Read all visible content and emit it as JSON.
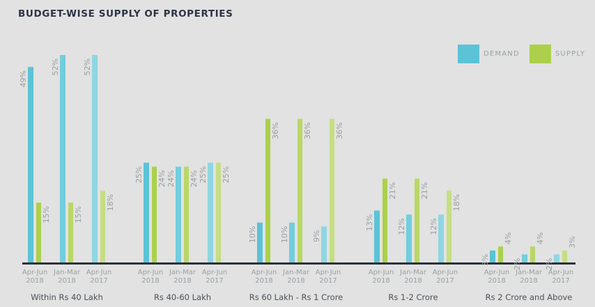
{
  "chart_data": {
    "type": "bar",
    "title": "BUDGET-WISE SUPPLY OF PROPERTIES",
    "legend": {
      "position": "top-right",
      "entries": [
        {
          "name": "DEMAND",
          "color": "#5bc3d6"
        },
        {
          "name": "SUPPLY",
          "color": "#acd04c"
        }
      ]
    },
    "periods": [
      {
        "line1": "Apr-Jun",
        "line2": "2018"
      },
      {
        "line1": "Jan-Mar",
        "line2": "2018"
      },
      {
        "line1": "Apr-Jun",
        "line2": "2017"
      }
    ],
    "period_colors": {
      "demand": [
        "#5bc3d6",
        "#72cddc",
        "#8fd6e2"
      ],
      "supply": [
        "#acd04c",
        "#b9d765",
        "#c5de82"
      ]
    },
    "categories": [
      "Within Rs 40 Lakh",
      "Rs 40-60 Lakh",
      "Rs 60 Lakh - Rs 1 Crore",
      "Rs 1-2 Crore",
      "Rs 2 Crore and Above"
    ],
    "series": [
      {
        "name": "DEMAND",
        "values": [
          [
            49,
            52,
            52
          ],
          [
            25,
            24,
            25
          ],
          [
            10,
            10,
            9
          ],
          [
            13,
            12,
            12
          ],
          [
            3,
            2,
            2
          ]
        ]
      },
      {
        "name": "SUPPLY",
        "values": [
          [
            15,
            15,
            18
          ],
          [
            24,
            24,
            25
          ],
          [
            36,
            36,
            36
          ],
          [
            21,
            21,
            18
          ],
          [
            4,
            4,
            3
          ]
        ]
      }
    ],
    "value_suffix": "%",
    "ylim": [
      0,
      52
    ],
    "grid": false
  }
}
